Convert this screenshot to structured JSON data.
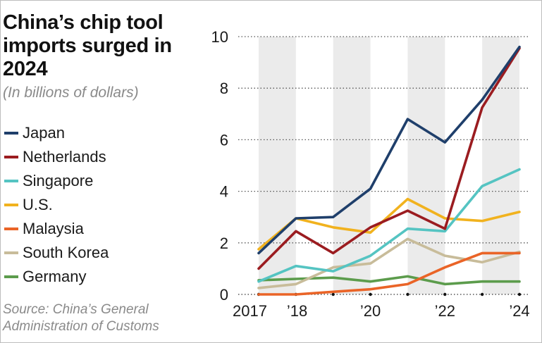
{
  "title": "China’s chip tool imports surged in 2024",
  "subtitle": "(In billions of dollars)",
  "source": "Source: China’s General Administration of Customs",
  "chart_data": {
    "type": "line",
    "x": [
      2017,
      2018,
      2019,
      2020,
      2021,
      2022,
      2023,
      2024
    ],
    "x_tick_labels": [
      {
        "x": 2017,
        "label": "2017"
      },
      {
        "x": 2018,
        "label": "’18"
      },
      {
        "x": 2020,
        "label": "’20"
      },
      {
        "x": 2022,
        "label": "’22"
      },
      {
        "x": 2024,
        "label": "’24"
      }
    ],
    "y_ticks": [
      0,
      2,
      4,
      6,
      8,
      10
    ],
    "ylim": [
      0,
      10
    ],
    "xlim": [
      2017,
      2024
    ],
    "shaded_years": [
      2017,
      2019,
      2021,
      2023
    ],
    "grid": "horizontal-dotted",
    "legend_position": "left",
    "series": [
      {
        "name": "Japan",
        "color": "#1f3f6b",
        "values": [
          1.6,
          2.95,
          3.0,
          4.1,
          6.8,
          5.9,
          7.55,
          9.6
        ]
      },
      {
        "name": "Netherlands",
        "color": "#9b1c20",
        "values": [
          1.0,
          2.45,
          1.6,
          2.6,
          3.25,
          2.55,
          7.25,
          9.55
        ]
      },
      {
        "name": "Singapore",
        "color": "#55c4c2",
        "values": [
          0.5,
          1.1,
          0.9,
          1.5,
          2.55,
          2.45,
          4.2,
          4.85
        ]
      },
      {
        "name": "U.S.",
        "color": "#f1b21e",
        "values": [
          1.75,
          2.95,
          2.6,
          2.4,
          3.7,
          2.95,
          2.85,
          3.2
        ]
      },
      {
        "name": "Malaysia",
        "color": "#ea6427",
        "values": [
          0.0,
          0.0,
          0.1,
          0.2,
          0.4,
          1.05,
          1.6,
          1.6
        ]
      },
      {
        "name": "South Korea",
        "color": "#c8bc9a",
        "values": [
          0.25,
          0.4,
          1.05,
          1.2,
          2.15,
          1.5,
          1.25,
          1.65
        ]
      },
      {
        "name": "Germany",
        "color": "#5c9c4c",
        "values": [
          0.55,
          0.6,
          0.65,
          0.5,
          0.7,
          0.4,
          0.5,
          0.5
        ]
      }
    ]
  }
}
